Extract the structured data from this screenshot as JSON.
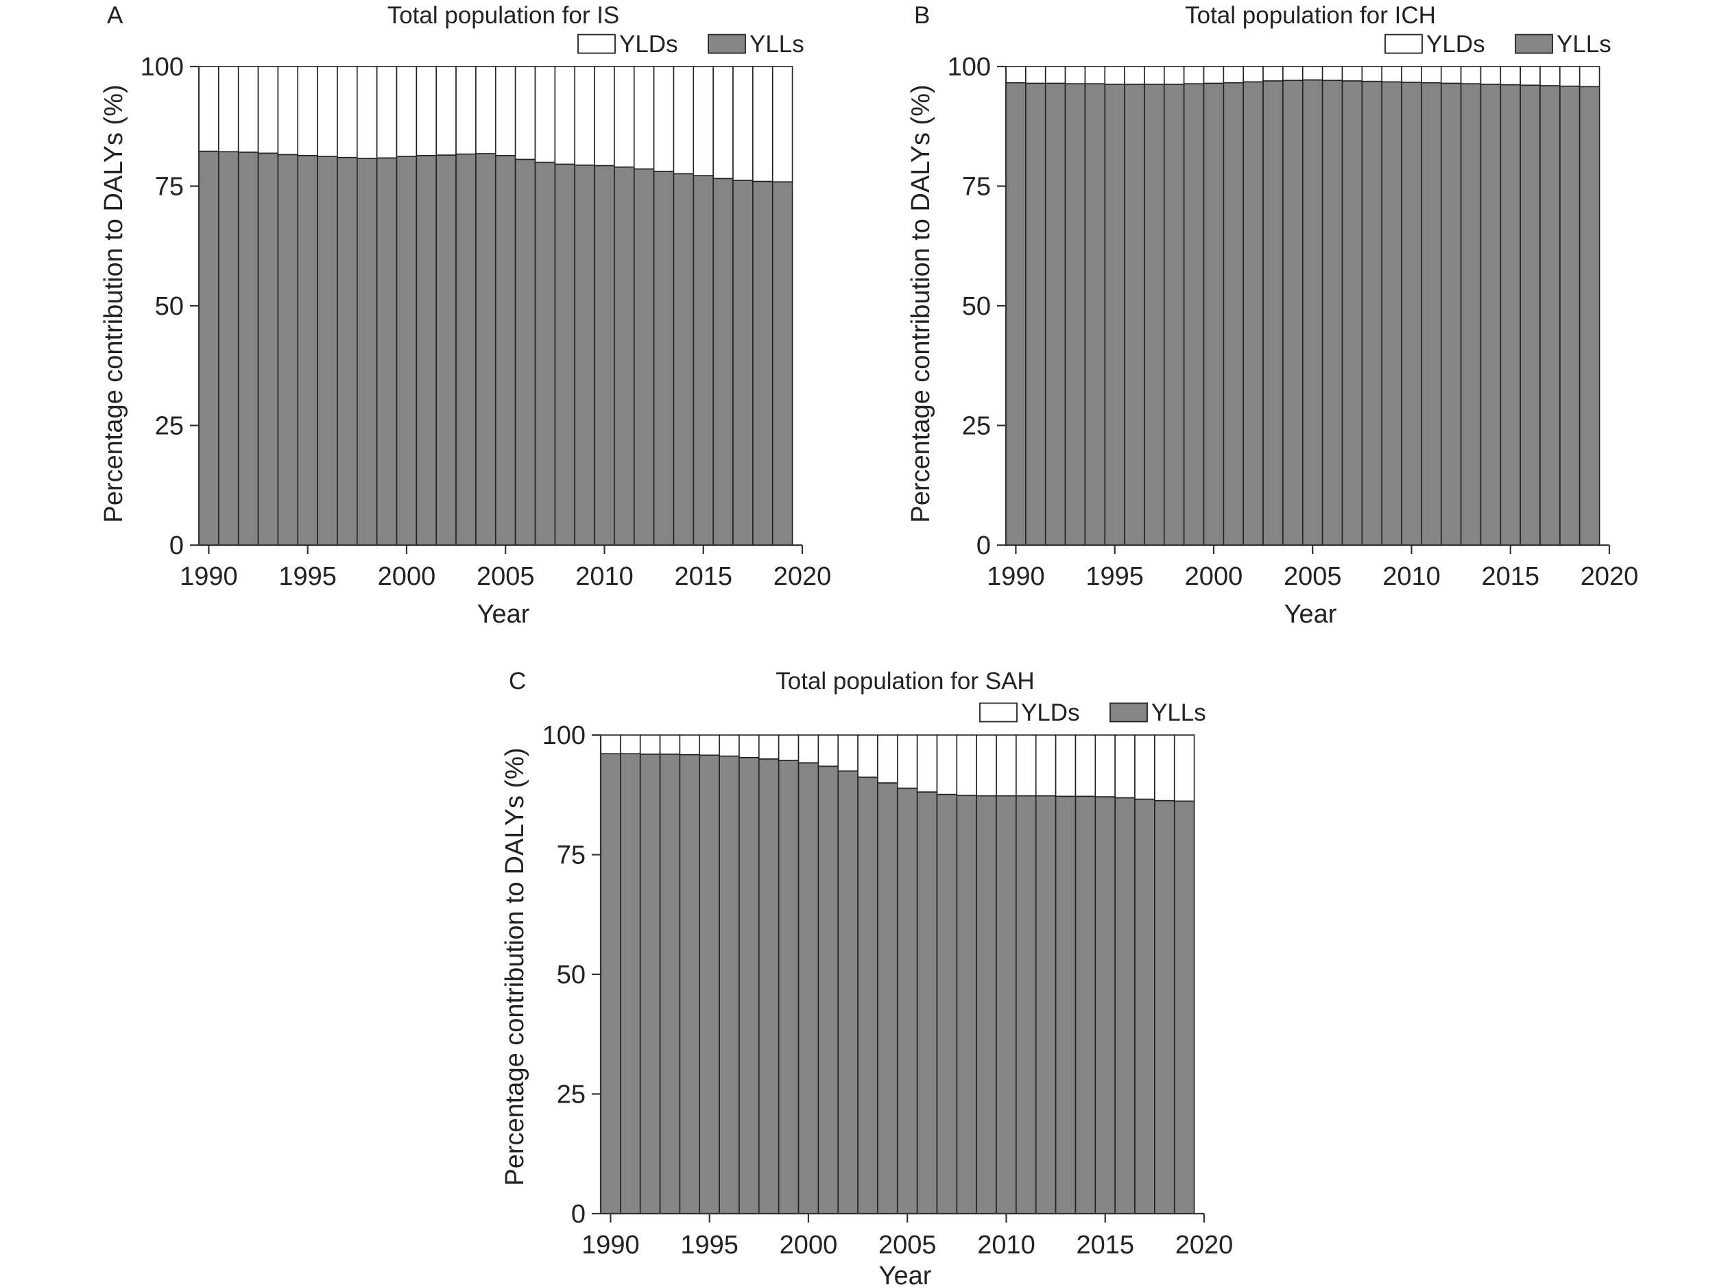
{
  "chart_data": [
    {
      "type": "bar",
      "stacked": true,
      "percent_stacked": true,
      "panel_label": "A",
      "title": "Total population for IS",
      "xlabel": "Year",
      "ylabel": "Percentage contribution to DALYs (%)",
      "ylim": [
        0,
        100
      ],
      "yticks": [
        0,
        25,
        50,
        75,
        100
      ],
      "xlim": [
        1989.5,
        2020
      ],
      "xticks": [
        1990,
        1995,
        2000,
        2005,
        2010,
        2015,
        2020
      ],
      "grid": false,
      "legend_placement": "top-right",
      "categories": [
        1990,
        1991,
        1992,
        1993,
        1994,
        1995,
        1996,
        1997,
        1998,
        1999,
        2000,
        2001,
        2002,
        2003,
        2004,
        2005,
        2006,
        2007,
        2008,
        2009,
        2010,
        2011,
        2012,
        2013,
        2014,
        2015,
        2016,
        2017,
        2018,
        2019
      ],
      "series": [
        {
          "name": "YLLs",
          "color": "#858585",
          "values": [
            82.3,
            82.2,
            82.1,
            81.9,
            81.6,
            81.4,
            81.2,
            81.0,
            80.8,
            80.9,
            81.2,
            81.4,
            81.5,
            81.7,
            81.8,
            81.4,
            80.6,
            80.0,
            79.6,
            79.4,
            79.3,
            79.0,
            78.6,
            78.1,
            77.6,
            77.2,
            76.6,
            76.2,
            76.0,
            75.9
          ]
        },
        {
          "name": "YLDs",
          "color": "#ffffff",
          "values": [
            17.7,
            17.8,
            17.9,
            18.1,
            18.4,
            18.6,
            18.8,
            19.0,
            19.2,
            19.1,
            18.8,
            18.6,
            18.5,
            18.3,
            18.2,
            18.6,
            19.4,
            20.0,
            20.4,
            20.6,
            20.7,
            21.0,
            21.4,
            21.9,
            22.4,
            22.8,
            23.4,
            23.8,
            24.0,
            24.1
          ]
        }
      ]
    },
    {
      "type": "bar",
      "stacked": true,
      "percent_stacked": true,
      "panel_label": "B",
      "title": "Total population for ICH",
      "xlabel": "Year",
      "ylabel": "Percentage contribution to DALYs (%)",
      "ylim": [
        0,
        100
      ],
      "yticks": [
        0,
        25,
        50,
        75,
        100
      ],
      "xlim": [
        1989.5,
        2020
      ],
      "xticks": [
        1990,
        1995,
        2000,
        2005,
        2010,
        2015,
        2020
      ],
      "grid": false,
      "legend_placement": "top-right",
      "categories": [
        1990,
        1991,
        1992,
        1993,
        1994,
        1995,
        1996,
        1997,
        1998,
        1999,
        2000,
        2001,
        2002,
        2003,
        2004,
        2005,
        2006,
        2007,
        2008,
        2009,
        2010,
        2011,
        2012,
        2013,
        2014,
        2015,
        2016,
        2017,
        2018,
        2019
      ],
      "series": [
        {
          "name": "YLLs",
          "color": "#858585",
          "values": [
            96.6,
            96.5,
            96.5,
            96.4,
            96.4,
            96.3,
            96.3,
            96.3,
            96.3,
            96.4,
            96.5,
            96.6,
            96.8,
            97.0,
            97.1,
            97.2,
            97.1,
            97.0,
            96.9,
            96.8,
            96.7,
            96.6,
            96.5,
            96.4,
            96.3,
            96.2,
            96.1,
            96.0,
            95.9,
            95.8
          ]
        },
        {
          "name": "YLDs",
          "color": "#ffffff",
          "values": [
            3.4,
            3.5,
            3.5,
            3.6,
            3.6,
            3.7,
            3.7,
            3.7,
            3.7,
            3.6,
            3.5,
            3.4,
            3.2,
            3.0,
            2.9,
            2.8,
            2.9,
            3.0,
            3.1,
            3.2,
            3.3,
            3.4,
            3.5,
            3.6,
            3.7,
            3.8,
            3.9,
            4.0,
            4.1,
            4.2
          ]
        }
      ]
    },
    {
      "type": "bar",
      "stacked": true,
      "percent_stacked": true,
      "panel_label": "C",
      "title": "Total population for SAH",
      "xlabel": "Year",
      "ylabel": "Percentage contribution to DALYs (%)",
      "ylim": [
        0,
        100
      ],
      "yticks": [
        0,
        25,
        50,
        75,
        100
      ],
      "xlim": [
        1989.5,
        2020
      ],
      "xticks": [
        1990,
        1995,
        2000,
        2005,
        2010,
        2015,
        2020
      ],
      "grid": false,
      "legend_placement": "top-right",
      "categories": [
        1990,
        1991,
        1992,
        1993,
        1994,
        1995,
        1996,
        1997,
        1998,
        1999,
        2000,
        2001,
        2002,
        2003,
        2004,
        2005,
        2006,
        2007,
        2008,
        2009,
        2010,
        2011,
        2012,
        2013,
        2014,
        2015,
        2016,
        2017,
        2018,
        2019
      ],
      "series": [
        {
          "name": "YLLs",
          "color": "#858585",
          "values": [
            96.1,
            96.1,
            96.0,
            96.0,
            95.9,
            95.8,
            95.6,
            95.3,
            95.0,
            94.7,
            94.2,
            93.5,
            92.5,
            91.2,
            90.0,
            88.9,
            88.1,
            87.6,
            87.4,
            87.3,
            87.3,
            87.3,
            87.3,
            87.2,
            87.2,
            87.1,
            86.9,
            86.6,
            86.3,
            86.2
          ]
        },
        {
          "name": "YLDs",
          "color": "#ffffff",
          "values": [
            3.9,
            3.9,
            4.0,
            4.0,
            4.1,
            4.2,
            4.4,
            4.7,
            5.0,
            5.3,
            5.8,
            6.5,
            7.5,
            8.8,
            10.0,
            11.1,
            11.9,
            12.4,
            12.6,
            12.7,
            12.7,
            12.7,
            12.7,
            12.8,
            12.8,
            12.9,
            13.1,
            13.4,
            13.7,
            13.8
          ]
        }
      ]
    }
  ]
}
